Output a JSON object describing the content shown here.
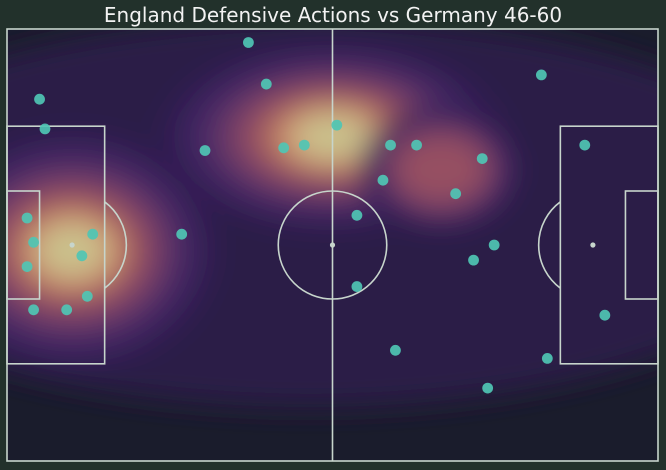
{
  "chart_data": {
    "type": "scatter",
    "title": "England Defensive Actions vs Germany 46-60",
    "xlim": [
      0,
      120
    ],
    "ylim": [
      0,
      80
    ],
    "heatmap_overlay": true,
    "colors": {
      "background": "#22312b",
      "pitch_lines": "#c7d5cc",
      "points": "#4fc5b4",
      "density_low": "#1a1c2c",
      "density_high": "#f0e6a0"
    },
    "density_centers": [
      {
        "x": 60,
        "y": 20,
        "intensity": 1.0
      },
      {
        "x": 12,
        "y": 41,
        "intensity": 0.95
      },
      {
        "x": 80,
        "y": 26,
        "intensity": 0.6
      }
    ],
    "points": [
      {
        "x": 44.5,
        "y": 2.5
      },
      {
        "x": 98.5,
        "y": 8.5
      },
      {
        "x": 6.0,
        "y": 13.0
      },
      {
        "x": 47.8,
        "y": 10.2
      },
      {
        "x": 7.0,
        "y": 18.5
      },
      {
        "x": 51.0,
        "y": 22.0
      },
      {
        "x": 36.5,
        "y": 22.5
      },
      {
        "x": 60.8,
        "y": 17.8
      },
      {
        "x": 54.8,
        "y": 21.5
      },
      {
        "x": 70.7,
        "y": 21.5
      },
      {
        "x": 75.5,
        "y": 21.5
      },
      {
        "x": 87.6,
        "y": 24.0
      },
      {
        "x": 106.5,
        "y": 21.5
      },
      {
        "x": 69.3,
        "y": 28.0
      },
      {
        "x": 82.7,
        "y": 30.5
      },
      {
        "x": 64.5,
        "y": 34.5
      },
      {
        "x": 3.7,
        "y": 35.0
      },
      {
        "x": 15.8,
        "y": 38.0
      },
      {
        "x": 32.2,
        "y": 38.0
      },
      {
        "x": 4.9,
        "y": 39.5
      },
      {
        "x": 89.8,
        "y": 40.0
      },
      {
        "x": 13.8,
        "y": 42.0
      },
      {
        "x": 86.0,
        "y": 42.8
      },
      {
        "x": 3.7,
        "y": 44.0
      },
      {
        "x": 64.5,
        "y": 47.7
      },
      {
        "x": 14.8,
        "y": 49.5
      },
      {
        "x": 4.9,
        "y": 52.0
      },
      {
        "x": 11.0,
        "y": 52.0
      },
      {
        "x": 110.2,
        "y": 53.0
      },
      {
        "x": 71.6,
        "y": 59.5
      },
      {
        "x": 99.6,
        "y": 61.0
      },
      {
        "x": 88.6,
        "y": 66.5
      }
    ]
  }
}
